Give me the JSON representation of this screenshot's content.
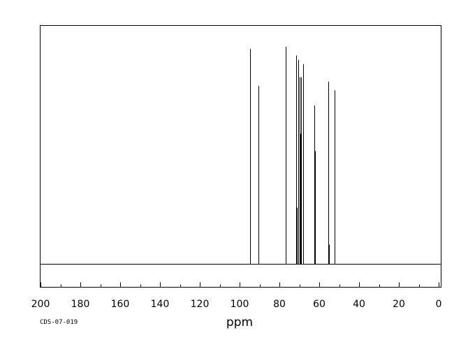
{
  "chart_data": {
    "type": "line",
    "xlabel": "ppm",
    "xlim": [
      200,
      0
    ],
    "x_ticks": [
      "200",
      "180",
      "160",
      "140",
      "120",
      "100",
      "80",
      "60",
      "40",
      "20",
      "0"
    ],
    "y_relative_range": [
      0,
      1
    ],
    "grid": false,
    "peaks": [
      {
        "ppm": 94.6,
        "intensity": 0.99
      },
      {
        "ppm": 90.4,
        "intensity": 0.82
      },
      {
        "ppm": 76.7,
        "intensity": 1.0
      },
      {
        "ppm": 71.5,
        "intensity": 0.96
      },
      {
        "ppm": 71.2,
        "intensity": 0.26
      },
      {
        "ppm": 70.5,
        "intensity": 0.94
      },
      {
        "ppm": 69.8,
        "intensity": 0.86
      },
      {
        "ppm": 69.4,
        "intensity": 0.6
      },
      {
        "ppm": 69.0,
        "intensity": 0.86
      },
      {
        "ppm": 68.0,
        "intensity": 0.92
      },
      {
        "ppm": 62.6,
        "intensity": 0.73
      },
      {
        "ppm": 62.2,
        "intensity": 0.52
      },
      {
        "ppm": 55.6,
        "intensity": 0.84
      },
      {
        "ppm": 55.2,
        "intensity": 0.09
      },
      {
        "ppm": 52.2,
        "intensity": 0.8
      }
    ]
  },
  "footer": {
    "spectrum_code": "CDS-07-019"
  }
}
